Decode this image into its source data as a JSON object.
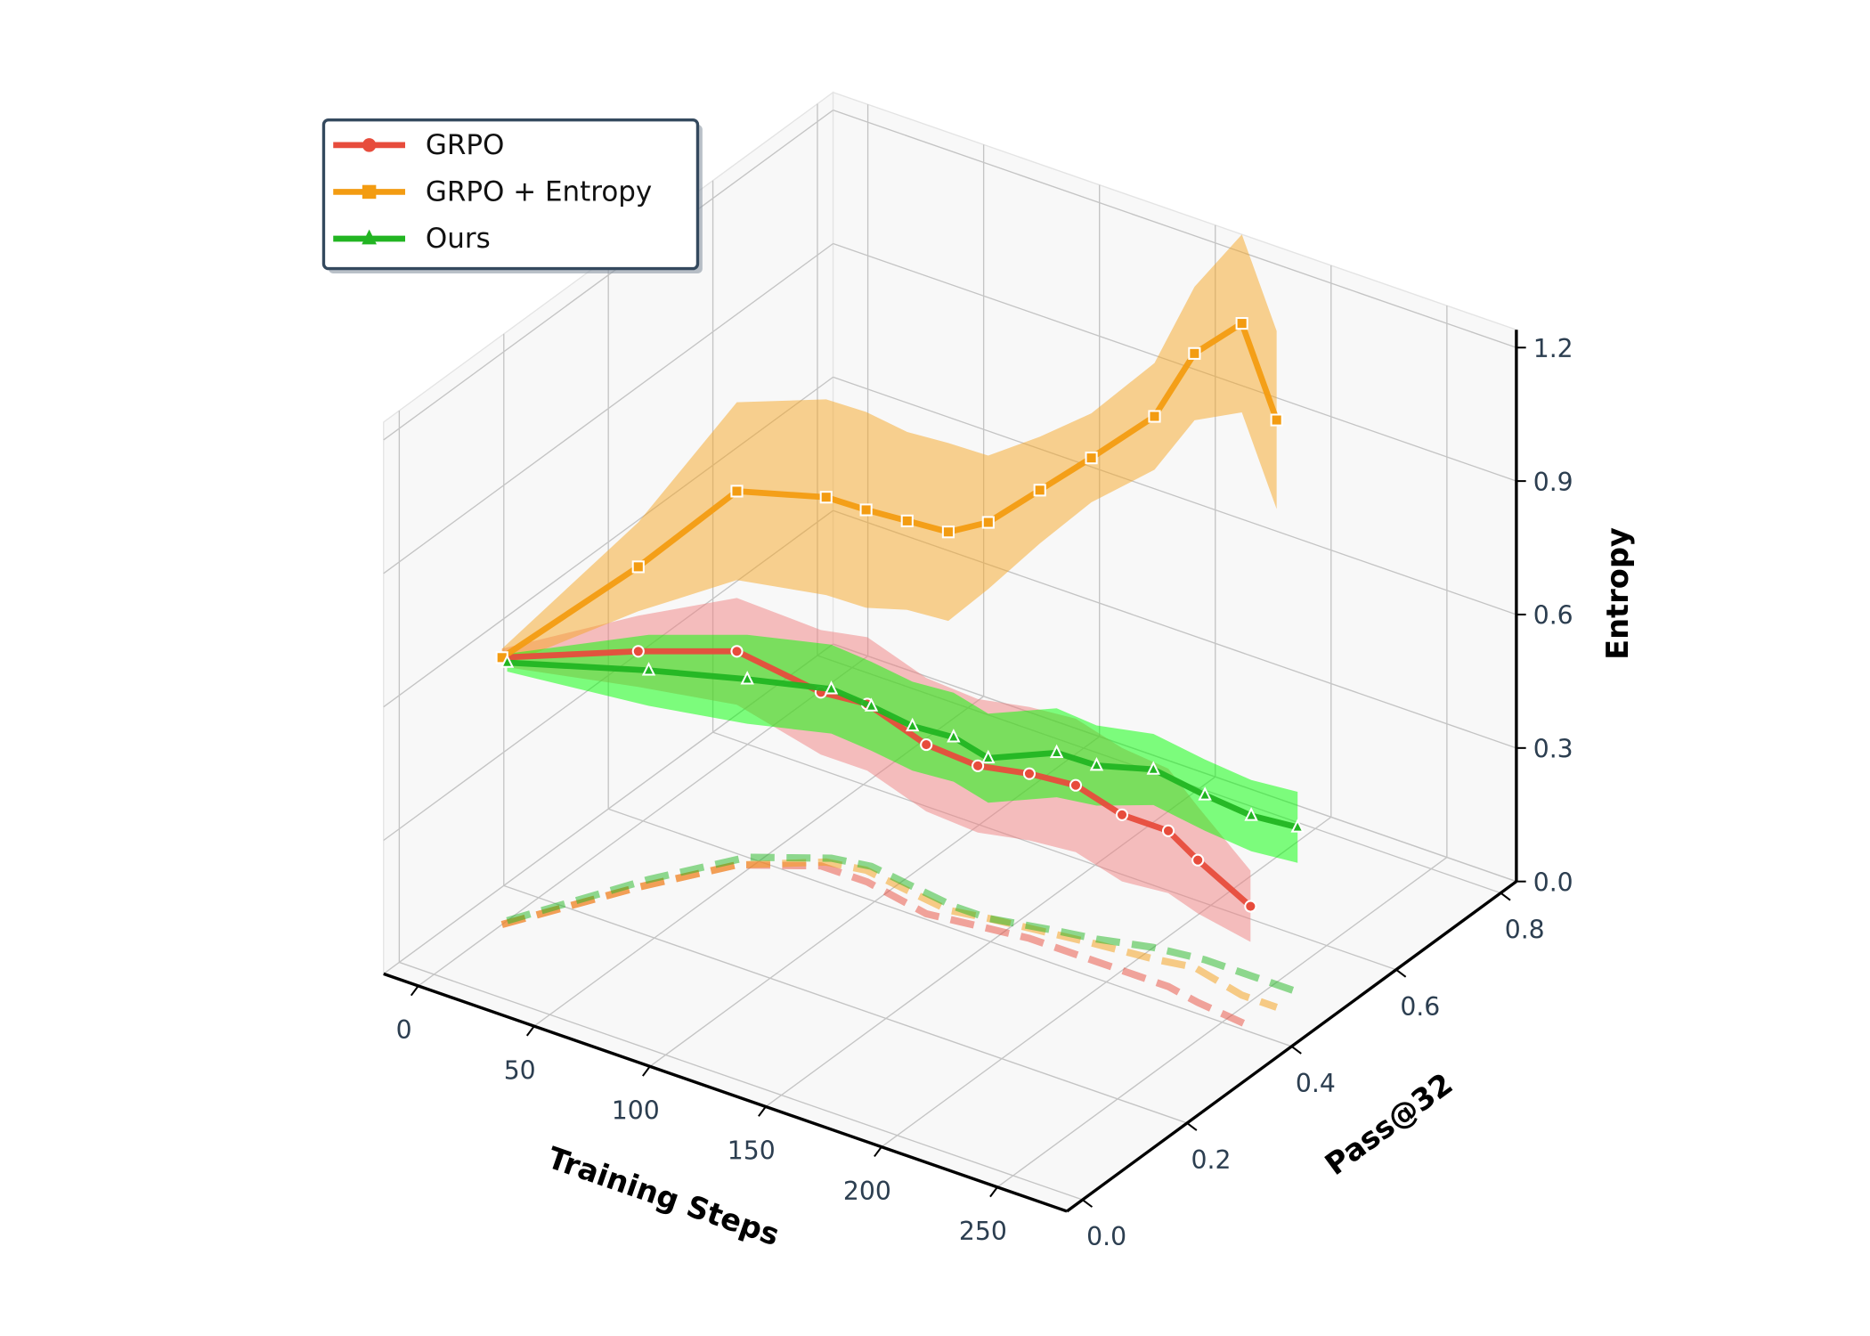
{
  "chart_data": {
    "type": "line3d",
    "xlabel": "Training Steps",
    "ylabel": "Pass@32",
    "zlabel": "Entropy",
    "xlim": [
      -15,
      280
    ],
    "ylim": [
      -0.03,
      0.83
    ],
    "zlim": [
      0,
      1.24
    ],
    "xticks": [
      0,
      50,
      100,
      150,
      200,
      250
    ],
    "yticks": [
      {
        "value": 0,
        "label": "0.0"
      },
      0.2,
      0.4,
      0.6,
      0.8
    ],
    "zticks": [
      {
        "value": 0,
        "label": "0.0"
      },
      0.3,
      0.6,
      0.9,
      1.2
    ],
    "grid": true,
    "legend": "upper left",
    "floor_projection": true,
    "series": [
      {
        "name": "GRPO",
        "color": "#e74c3c",
        "band_color": "#f08080",
        "marker": "o",
        "x": [
          0,
          25,
          45,
          70,
          90,
          120,
          140,
          160,
          180,
          200,
          220,
          235,
          260
        ],
        "pass": [
          0.13,
          0.28,
          0.38,
          0.43,
          0.43,
          0.41,
          0.42,
          0.43,
          0.43,
          0.43,
          0.43,
          0.42,
          0.41
        ],
        "values": [
          0.6,
          0.53,
          0.48,
          0.39,
          0.4,
          0.38,
          0.36,
          0.37,
          0.38,
          0.35,
          0.35,
          0.32,
          0.27
        ],
        "low": [
          0.58,
          0.45,
          0.36,
          0.25,
          0.25,
          0.23,
          0.21,
          0.22,
          0.23,
          0.2,
          0.21,
          0.2,
          0.19
        ],
        "high": [
          0.62,
          0.61,
          0.6,
          0.53,
          0.55,
          0.53,
          0.51,
          0.52,
          0.53,
          0.5,
          0.49,
          0.44,
          0.35
        ]
      },
      {
        "name": "GRPO + Entropy",
        "color": "#f39c12",
        "band_color": "#f5a623",
        "marker": "s",
        "x": [
          0,
          25,
          45,
          70,
          85,
          105,
          125,
          140,
          160,
          180,
          205,
          220,
          245,
          260
        ],
        "pass": [
          0.13,
          0.28,
          0.38,
          0.44,
          0.45,
          0.44,
          0.43,
          0.44,
          0.45,
          0.46,
          0.47,
          0.48,
          0.46,
          0.46
        ],
        "values": [
          0.6,
          0.72,
          0.84,
          0.82,
          0.81,
          0.83,
          0.85,
          0.89,
          0.99,
          1.09,
          1.22,
          1.38,
          1.51,
          1.32
        ],
        "low": [
          0.58,
          0.62,
          0.64,
          0.6,
          0.59,
          0.63,
          0.65,
          0.74,
          0.87,
          0.99,
          1.1,
          1.23,
          1.31,
          1.12
        ],
        "high": [
          0.62,
          0.82,
          1.04,
          1.04,
          1.03,
          1.03,
          1.05,
          1.04,
          1.11,
          1.19,
          1.34,
          1.53,
          1.71,
          1.52
        ]
      },
      {
        "name": "Ours",
        "color": "#22b522",
        "band_color": "#00ff00",
        "marker": "^",
        "x": [
          0,
          25,
          45,
          70,
          85,
          105,
          125,
          140,
          165,
          180,
          200,
          220,
          240,
          260
        ],
        "pass": [
          0.14,
          0.3,
          0.4,
          0.45,
          0.46,
          0.45,
          0.44,
          0.44,
          0.46,
          0.47,
          0.49,
          0.5,
          0.5,
          0.5
        ],
        "values": [
          0.58,
          0.47,
          0.4,
          0.38,
          0.36,
          0.36,
          0.38,
          0.36,
          0.4,
          0.39,
          0.4,
          0.37,
          0.36,
          0.37
        ],
        "low": [
          0.56,
          0.39,
          0.3,
          0.28,
          0.26,
          0.26,
          0.28,
          0.26,
          0.3,
          0.3,
          0.32,
          0.29,
          0.28,
          0.29
        ],
        "high": [
          0.6,
          0.55,
          0.5,
          0.48,
          0.46,
          0.46,
          0.48,
          0.46,
          0.5,
          0.48,
          0.48,
          0.45,
          0.44,
          0.45
        ]
      }
    ]
  }
}
